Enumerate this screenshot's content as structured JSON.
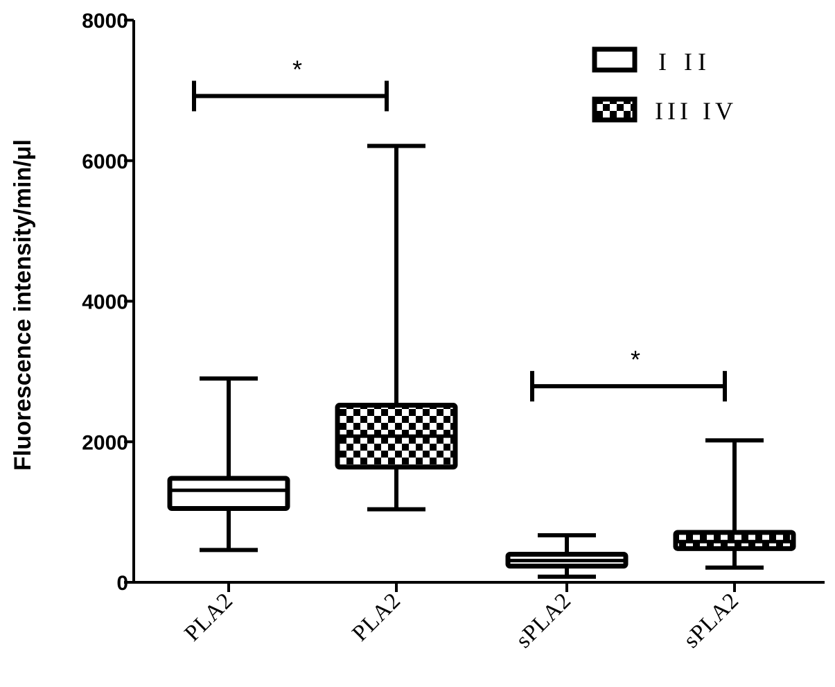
{
  "chart_data": {
    "type": "box",
    "ylabel": "Fluorescence intensity/min/μl",
    "ylim": [
      0,
      8000
    ],
    "yticks": [
      0,
      2000,
      4000,
      6000,
      8000
    ],
    "categories": [
      "PLA2",
      "PLA2",
      "sPLA2",
      "sPLA2"
    ],
    "legend": {
      "placement": "top-right",
      "entries": [
        {
          "label": "I II",
          "pattern": "open"
        },
        {
          "label": "III IV",
          "pattern": "checkered"
        }
      ]
    },
    "boxes": [
      {
        "category": "PLA2",
        "group": "I II",
        "min": 460,
        "q1": 1050,
        "median": 1310,
        "q3": 1480,
        "max": 2900
      },
      {
        "category": "PLA2",
        "group": "III IV",
        "min": 1040,
        "q1": 1640,
        "median": 2080,
        "q3": 2520,
        "max": 6210
      },
      {
        "category": "sPLA2",
        "group": "I II",
        "min": 80,
        "q1": 230,
        "median": 310,
        "q3": 400,
        "max": 670
      },
      {
        "category": "sPLA2",
        "group": "III IV",
        "min": 210,
        "q1": 480,
        "median": 580,
        "q3": 710,
        "max": 2020
      }
    ],
    "significance": [
      {
        "from": 0,
        "to": 1,
        "y": 6920,
        "label": "*"
      },
      {
        "from": 2,
        "to": 3,
        "y": 2790,
        "label": "*"
      }
    ]
  }
}
